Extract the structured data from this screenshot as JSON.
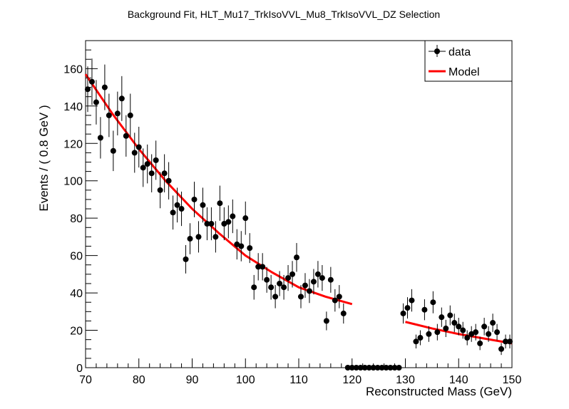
{
  "chart_data": {
    "type": "scatter",
    "title": "Background Fit, HLT_Mu17_TrkIsoVVL_Mu8_TrkIsoVVL_DZ Selection",
    "xlabel": "Reconstructed Mass (GeV)",
    "ylabel": "Events / ( 0.8 GeV )",
    "xlim": [
      70,
      150
    ],
    "ylim": [
      0,
      175
    ],
    "xticks": [
      70,
      80,
      90,
      100,
      110,
      120,
      130,
      140,
      150
    ],
    "yticks": [
      0,
      20,
      40,
      60,
      80,
      100,
      120,
      140,
      160
    ],
    "legend": {
      "position": "top-right",
      "entries": [
        {
          "label": "data",
          "style": "marker-errorbar",
          "color": "#000000"
        },
        {
          "label": "Model",
          "style": "line",
          "color": "#ff0000"
        }
      ]
    },
    "series": [
      {
        "name": "data",
        "color": "#000000",
        "x": [
          70.4,
          71.2,
          72.0,
          72.8,
          73.6,
          74.4,
          75.2,
          76.0,
          76.8,
          77.6,
          78.4,
          79.2,
          80.0,
          80.8,
          81.6,
          82.4,
          83.2,
          84.0,
          84.8,
          85.6,
          86.4,
          87.2,
          88.0,
          88.8,
          89.6,
          90.4,
          91.2,
          92.0,
          92.8,
          93.6,
          94.4,
          95.2,
          96.0,
          96.8,
          97.6,
          98.4,
          99.2,
          100.0,
          100.8,
          101.6,
          102.4,
          103.2,
          104.0,
          104.8,
          105.6,
          106.4,
          107.2,
          108.0,
          108.8,
          109.6,
          110.4,
          111.2,
          112.0,
          112.8,
          113.6,
          114.4,
          115.2,
          116.0,
          116.8,
          117.6,
          118.4,
          119.2,
          120.0,
          120.8,
          121.6,
          122.4,
          123.2,
          124.0,
          124.8,
          125.6,
          126.4,
          127.2,
          128.0,
          128.8,
          129.6,
          130.4,
          131.2,
          132.0,
          132.8,
          133.6,
          134.4,
          135.2,
          136.0,
          136.8,
          137.6,
          138.4,
          139.2,
          140.0,
          140.8,
          141.6,
          142.4,
          143.2,
          144.0,
          144.8,
          145.6,
          146.4,
          147.2,
          148.0,
          148.8,
          149.6
        ],
        "y": [
          149,
          153,
          142,
          123,
          150,
          135,
          116,
          136,
          144,
          124,
          135,
          115,
          118,
          107,
          109,
          104,
          111,
          95,
          104,
          100,
          83,
          87,
          85,
          58,
          69,
          90,
          70,
          87,
          77,
          77,
          70,
          88,
          77,
          78,
          81,
          66,
          65,
          80,
          64,
          43,
          54,
          54,
          47,
          43,
          38,
          45,
          43,
          48,
          50,
          59,
          38,
          44,
          41,
          46,
          50,
          48,
          25,
          47,
          36,
          38,
          29,
          0,
          0,
          0,
          0,
          0,
          0,
          0,
          0,
          0,
          0,
          0,
          0,
          0,
          29,
          32,
          36,
          14,
          16,
          31,
          18,
          35,
          19,
          27,
          21,
          28,
          24,
          22,
          20,
          16,
          18,
          19,
          13,
          22,
          18,
          24,
          19,
          10,
          14,
          14
        ],
        "errors": [
          12.2,
          12.4,
          11.9,
          11.1,
          12.2,
          11.6,
          10.8,
          11.7,
          12.0,
          11.1,
          11.6,
          10.7,
          10.9,
          10.3,
          10.4,
          10.2,
          10.5,
          9.7,
          10.2,
          10.0,
          9.1,
          9.3,
          9.2,
          7.6,
          8.3,
          9.5,
          8.4,
          9.3,
          8.8,
          8.8,
          8.4,
          9.4,
          8.8,
          8.8,
          9.0,
          8.1,
          8.1,
          8.9,
          8.0,
          6.6,
          7.3,
          7.3,
          6.9,
          6.6,
          6.2,
          6.7,
          6.6,
          6.9,
          7.1,
          7.7,
          6.2,
          6.6,
          6.4,
          6.8,
          7.1,
          6.9,
          5.0,
          6.9,
          6.0,
          6.2,
          5.4,
          0,
          0,
          0,
          0,
          0,
          0,
          0,
          0,
          0,
          0,
          0,
          0,
          0,
          5.4,
          5.7,
          6.0,
          3.7,
          4.0,
          5.6,
          4.2,
          5.9,
          4.4,
          5.2,
          4.6,
          5.3,
          4.9,
          4.7,
          4.5,
          4.0,
          4.2,
          4.4,
          3.6,
          4.7,
          4.2,
          4.9,
          4.4,
          3.2,
          3.7,
          3.7
        ]
      },
      {
        "name": "Model",
        "color": "#ff0000",
        "segments": [
          {
            "x": [
              70,
              75,
              80,
              85,
              90,
              95,
              100,
              105,
              110,
              115,
              120
            ],
            "y": [
              157,
              136,
              117,
              100,
              85,
              72,
              60,
              51,
              43,
              38,
              34
            ]
          },
          {
            "x": [
              130,
              135,
              140,
              145,
              150
            ],
            "y": [
              24.5,
              21,
              18,
              15.5,
              13
            ]
          }
        ]
      }
    ]
  }
}
